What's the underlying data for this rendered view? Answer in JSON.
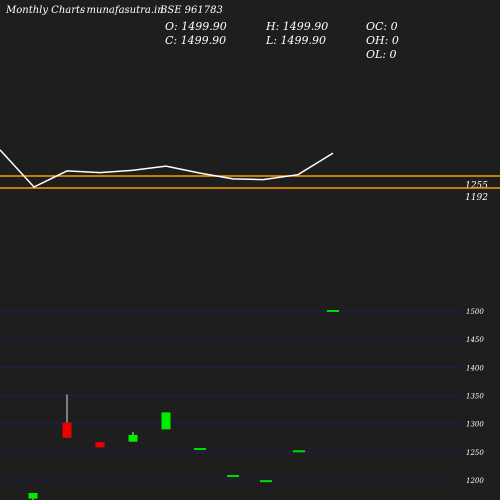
{
  "header": {
    "title": "Monthly Charts",
    "site": "- munafasutra.in",
    "symbol": "BSE 961783"
  },
  "ohlc_readout": {
    "open": "O: 1499.90",
    "close": "C: 1499.90",
    "high": "H: 1499.90",
    "low": "L: 1499.90",
    "oc": "OC: 0",
    "oh": "OH: 0",
    "ol": "OL: 0"
  },
  "colors": {
    "background": "#1e1e1e",
    "line": "#ffffff",
    "level_line": "#ff9900",
    "grid": "#1c1c5e",
    "up_candle": "#00ee00",
    "down_candle": "#ee0000",
    "unchanged_candle": "#00dd00",
    "text": "#ffffff"
  },
  "chart_data": [
    {
      "type": "line",
      "title": "",
      "xlabel": "",
      "ylabel": "",
      "levels": [
        1255,
        1192
      ],
      "level_labels": [
        "1255",
        "1192"
      ],
      "values": [
        1392,
        1197,
        1282,
        1273,
        1285,
        1307,
        1270,
        1240,
        1236,
        1262,
        1375
      ]
    },
    {
      "type": "candlestick",
      "title": "",
      "xlabel": "",
      "ylabel": "",
      "ylim": [
        1185,
        1530
      ],
      "y_ticks": [
        1500,
        1450,
        1400,
        1350,
        1300,
        1250,
        1200
      ],
      "candles": [
        {
          "open": 1167,
          "high": 1177,
          "low": 1160,
          "close": 1177
        },
        {
          "open": 1302,
          "high": 1352,
          "low": 1275,
          "close": 1275
        },
        {
          "open": 1267,
          "high": 1267,
          "low": 1258,
          "close": 1258
        },
        {
          "open": 1268,
          "high": 1285,
          "low": 1268,
          "close": 1280
        },
        {
          "open": 1290,
          "high": 1320,
          "low": 1290,
          "close": 1320
        },
        {
          "open": 1255,
          "high": 1255,
          "low": 1255,
          "close": 1255
        },
        {
          "open": 1207,
          "high": 1207,
          "low": 1207,
          "close": 1207
        },
        {
          "open": 1198,
          "high": 1198,
          "low": 1198,
          "close": 1198
        },
        {
          "open": 1251,
          "high": 1251,
          "low": 1251,
          "close": 1251
        },
        {
          "open": 1500,
          "high": 1500,
          "low": 1500,
          "close": 1500
        }
      ]
    }
  ]
}
